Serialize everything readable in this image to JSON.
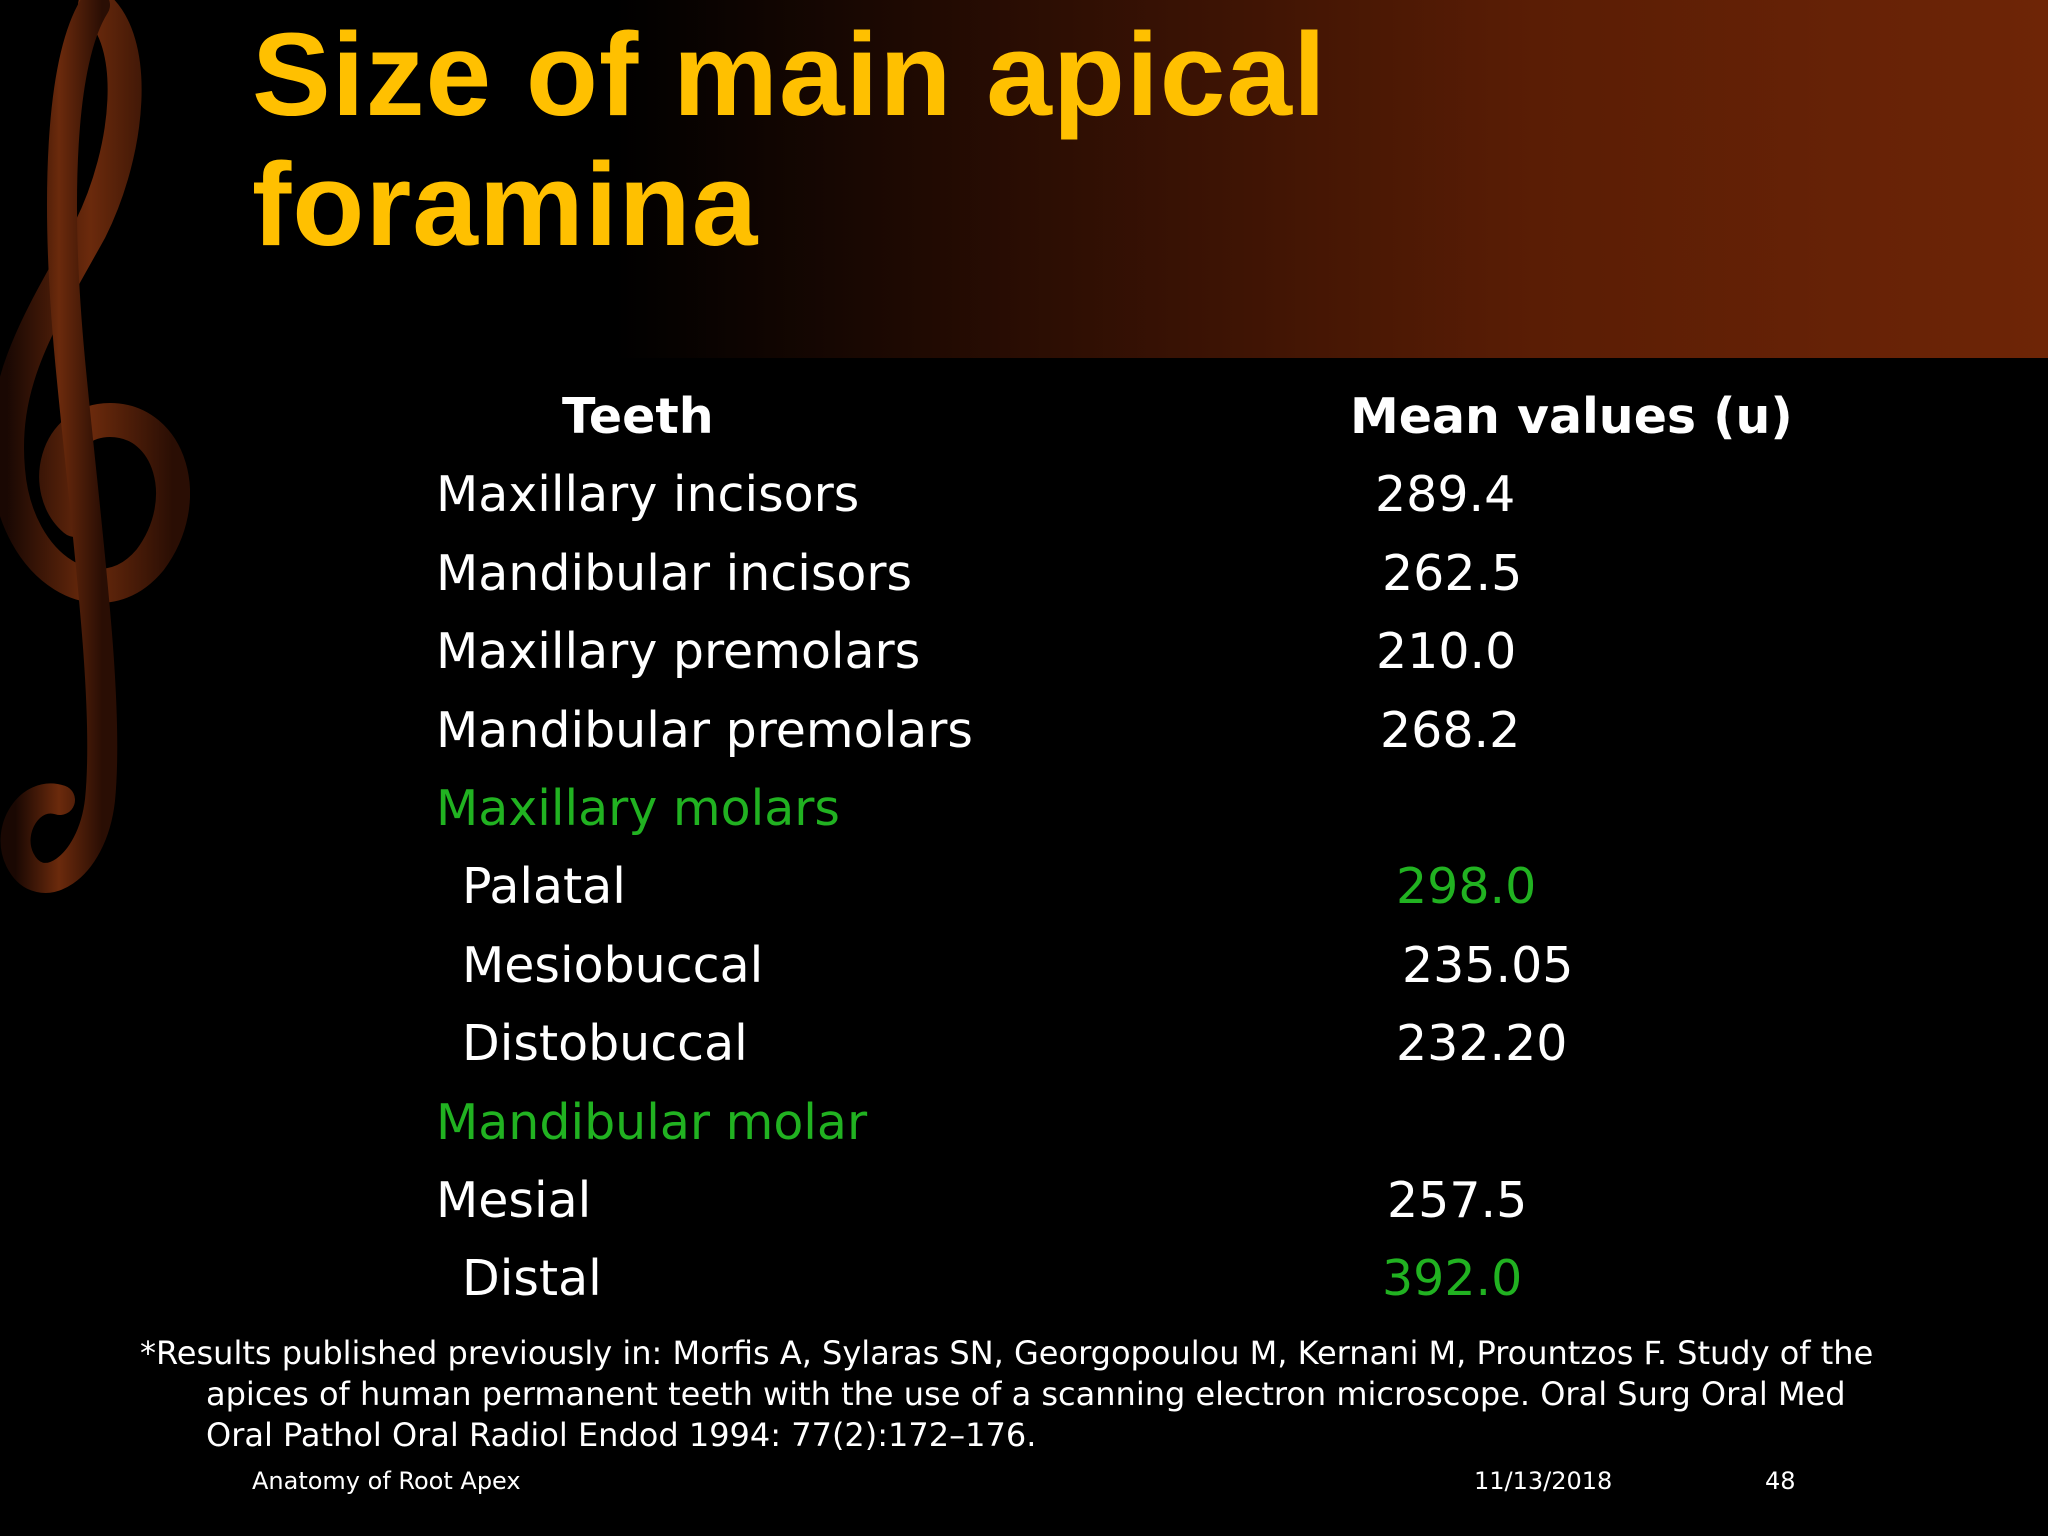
{
  "slide": {
    "title_line1": "Size of main apical",
    "title_line2": "foramina",
    "header": {
      "teeth": "Teeth",
      "mean": "Mean values (u)"
    },
    "rows": [
      {
        "label": "Maxillary incisors",
        "value": "289.4"
      },
      {
        "label": "Mandibular incisors",
        "value": "262.5"
      },
      {
        "label": "Maxillary premolars",
        "value": "210.0"
      },
      {
        "label": "Mandibular premolars",
        "value": "268.2"
      },
      {
        "label": "Maxillary molars",
        "value": ""
      },
      {
        "label": "Palatal",
        "value": "298.0"
      },
      {
        "label": "Mesiobuccal",
        "value": "235.05"
      },
      {
        "label": "Distobuccal",
        "value": "232.20"
      },
      {
        "label": "Mandibular molar",
        "value": ""
      },
      {
        "label": "Mesial",
        "value": "257.5"
      },
      {
        "label": "Distal",
        "value": "392.0"
      }
    ],
    "footnote": "*Results published previously in: Morfis A, Sylaras SN, Georgopoulou M,  Kernani M, Prountzos F. Study of the apices of human permanent teeth  with the use of a scanning electron microscope. Oral Surg Oral Med  Oral Pathol Oral Radiol Endod 1994: 77(2):172–176.",
    "footer_left": "Anatomy of Root Apex",
    "footer_date": "11/13/2018",
    "footer_page": "48",
    "colors": {
      "title": "#FFC000",
      "highlight": "#21B221",
      "text": "#FFFFFF",
      "background": "#000000",
      "band_accent": "#6E2506"
    }
  }
}
